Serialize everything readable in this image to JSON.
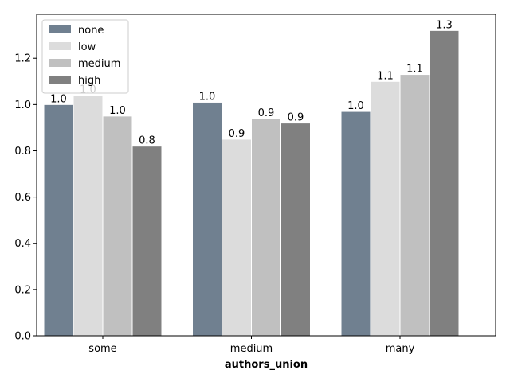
{
  "chart_data": {
    "type": "bar",
    "title": "",
    "xlabel": "authors_union",
    "ylabel": "",
    "categories": [
      "some",
      "medium",
      "many"
    ],
    "series": [
      {
        "name": "none",
        "color": "#708090",
        "values": [
          1.0,
          1.01,
          0.97
        ],
        "labels": [
          "1.0",
          "1.0",
          "1.0"
        ]
      },
      {
        "name": "low",
        "color": "#dcdcdc",
        "values": [
          1.04,
          0.85,
          1.1
        ],
        "labels": [
          "1.0",
          "0.9",
          "1.1"
        ]
      },
      {
        "name": "medium",
        "color": "#c0c0c0",
        "values": [
          0.95,
          0.94,
          1.13
        ],
        "labels": [
          "1.0",
          "0.9",
          "1.1"
        ]
      },
      {
        "name": "high",
        "color": "#808080",
        "values": [
          0.82,
          0.92,
          1.32
        ],
        "labels": [
          "0.8",
          "0.9",
          "1.3"
        ]
      }
    ],
    "yticks": [
      "0.0",
      "0.2",
      "0.4",
      "0.6",
      "0.8",
      "1.0",
      "1.2"
    ],
    "ylim": [
      0,
      1.39
    ],
    "legend_position": "top-left",
    "grid": false
  }
}
